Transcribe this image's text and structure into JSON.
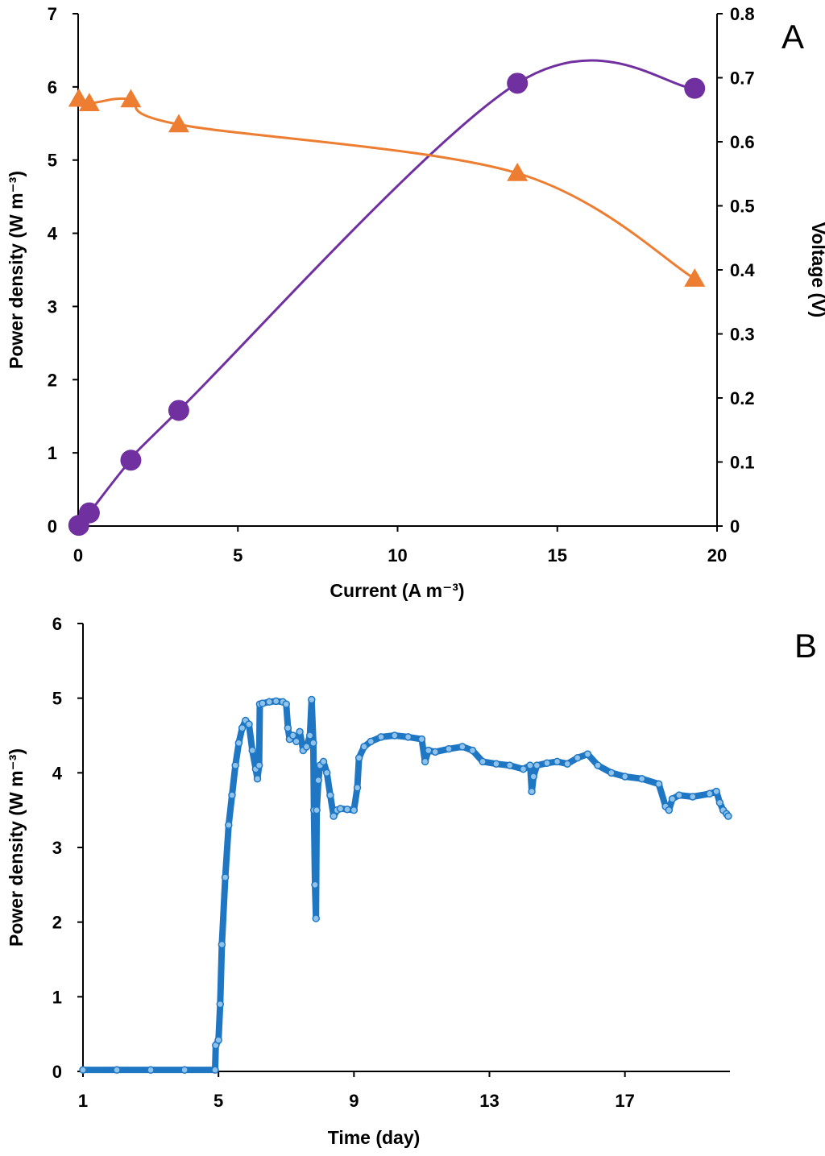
{
  "chart_data": [
    {
      "panel": "A",
      "type": "line",
      "xlabel": "Current (A m⁻³)",
      "ylabel": "Power density (W m⁻³)",
      "y2label": "Voltage (V)",
      "xlim": [
        0,
        20
      ],
      "ylim": [
        0,
        7
      ],
      "y2lim": [
        0,
        0.8
      ],
      "x_ticks": [
        "0",
        "5",
        "10",
        "15",
        "20"
      ],
      "y_ticks": [
        "0",
        "1",
        "2",
        "3",
        "4",
        "5",
        "6",
        "7"
      ],
      "y2_ticks": [
        "0",
        "0.1",
        "0.2",
        "0.3",
        "0.4",
        "0.5",
        "0.6",
        "0.7",
        "0.8"
      ],
      "grid": false,
      "series": [
        {
          "axis": "left",
          "marker": "circle",
          "color": "#7030A0",
          "x": [
            0.02,
            0.35,
            1.65,
            3.15,
            13.75,
            19.3
          ],
          "y": [
            0.01,
            0.18,
            0.9,
            1.58,
            6.05,
            5.98
          ]
        },
        {
          "axis": "right",
          "marker": "triangle",
          "color": "#ED7D31",
          "x": [
            0.02,
            0.35,
            1.65,
            3.15,
            13.75,
            19.3
          ],
          "y": [
            0.667,
            0.66,
            0.666,
            0.627,
            0.551,
            0.386
          ]
        }
      ]
    },
    {
      "panel": "B",
      "type": "line",
      "xlabel": "Time (day)",
      "ylabel": "Power density (W m⁻³)",
      "xlim": [
        1,
        20.1
      ],
      "ylim": [
        0,
        6
      ],
      "x_ticks": [
        "1",
        "5",
        "9",
        "13",
        "17"
      ],
      "y_ticks": [
        "0",
        "1",
        "2",
        "3",
        "4",
        "5",
        "6"
      ],
      "grid": false,
      "series": [
        {
          "color": "#1F77C4",
          "marker": "small-circle",
          "x": [
            1.0,
            2.0,
            3.0,
            4.0,
            4.9,
            4.92,
            5.0,
            5.05,
            5.1,
            5.2,
            5.3,
            5.4,
            5.5,
            5.6,
            5.7,
            5.8,
            5.9,
            6.0,
            6.1,
            6.15,
            6.2,
            6.22,
            6.3,
            6.5,
            6.7,
            6.9,
            7.0,
            7.05,
            7.1,
            7.2,
            7.3,
            7.4,
            7.5,
            7.6,
            7.7,
            7.75,
            7.8,
            7.82,
            7.85,
            7.88,
            7.9,
            7.95,
            8.0,
            8.1,
            8.2,
            8.3,
            8.4,
            8.5,
            8.6,
            8.8,
            9.0,
            9.1,
            9.15,
            9.3,
            9.5,
            9.8,
            10.2,
            10.6,
            11.0,
            11.1,
            11.2,
            11.4,
            11.8,
            12.2,
            12.5,
            12.8,
            13.2,
            13.6,
            14.0,
            14.2,
            14.25,
            14.3,
            14.4,
            14.7,
            15.0,
            15.3,
            15.6,
            15.9,
            16.2,
            16.6,
            17.0,
            17.5,
            18.0,
            18.2,
            18.3,
            18.4,
            18.6,
            19.0,
            19.5,
            19.7,
            19.8,
            19.9,
            20.0,
            20.05
          ],
          "y": [
            0.02,
            0.02,
            0.02,
            0.02,
            0.02,
            0.35,
            0.42,
            0.9,
            1.7,
            2.6,
            3.3,
            3.7,
            4.1,
            4.4,
            4.6,
            4.7,
            4.65,
            4.3,
            4.05,
            3.92,
            4.1,
            4.92,
            4.93,
            4.95,
            4.96,
            4.95,
            4.92,
            4.6,
            4.45,
            4.5,
            4.42,
            4.55,
            4.3,
            4.35,
            4.5,
            4.98,
            4.4,
            3.5,
            2.5,
            2.05,
            3.5,
            3.9,
            4.1,
            4.15,
            4.0,
            3.7,
            3.42,
            3.5,
            3.52,
            3.51,
            3.5,
            3.8,
            4.2,
            4.35,
            4.42,
            4.48,
            4.5,
            4.48,
            4.45,
            4.15,
            4.3,
            4.28,
            4.32,
            4.35,
            4.3,
            4.15,
            4.12,
            4.1,
            4.05,
            4.1,
            3.75,
            3.95,
            4.1,
            4.13,
            4.15,
            4.12,
            4.2,
            4.25,
            4.1,
            4.0,
            3.95,
            3.92,
            3.85,
            3.55,
            3.5,
            3.65,
            3.7,
            3.68,
            3.72,
            3.75,
            3.6,
            3.5,
            3.45,
            3.42
          ]
        }
      ]
    }
  ]
}
